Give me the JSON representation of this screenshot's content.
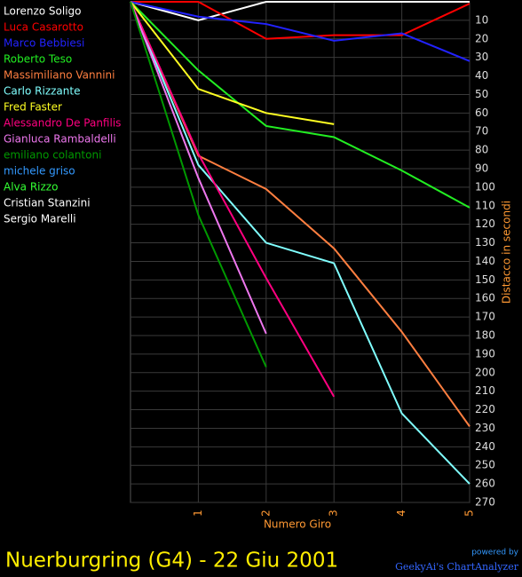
{
  "chart_data": {
    "type": "line",
    "title": "Nuerburgring (G4) - 22 Giu 2001",
    "xlabel": "Numero Giro",
    "ylabel": "Distacco in secondi",
    "credit_top": "powered by",
    "credit": "GeekyAi's ChartAnalyzer",
    "x": [
      0,
      1,
      2,
      3,
      4,
      5
    ],
    "xlim": [
      0,
      5
    ],
    "xticks": [
      1,
      2,
      3,
      4,
      5
    ],
    "ylim": [
      0,
      270
    ],
    "y_inverted": true,
    "yticks": [
      10,
      20,
      30,
      40,
      50,
      60,
      70,
      80,
      90,
      100,
      110,
      120,
      130,
      140,
      150,
      160,
      170,
      180,
      190,
      200,
      210,
      220,
      230,
      240,
      250,
      260,
      270
    ],
    "grid": true,
    "legend": "top-left",
    "series": [
      {
        "name": "Lorenzo Soligo",
        "color": "#ffffff",
        "values": [
          0,
          10,
          0,
          0,
          0,
          0
        ]
      },
      {
        "name": "Luca Casarotto",
        "color": "#ff0000",
        "values": [
          0,
          0,
          20,
          18,
          18,
          1
        ]
      },
      {
        "name": "Marco Bebbiesi",
        "color": "#2222ff",
        "values": [
          0,
          8,
          12,
          21,
          17,
          32
        ]
      },
      {
        "name": "Roberto Teso",
        "color": "#22ee22",
        "values": [
          0,
          37,
          67,
          73,
          91,
          111
        ]
      },
      {
        "name": "Massimiliano Vannini",
        "color": "#ff7f40",
        "values": [
          0,
          83,
          101,
          133,
          178,
          229
        ]
      },
      {
        "name": "Carlo Rizzante",
        "color": "#80ffff",
        "values": [
          0,
          88,
          130,
          141,
          222,
          260
        ]
      },
      {
        "name": "Fred Faster",
        "color": "#ffff22",
        "values": [
          0,
          47,
          60,
          66,
          null,
          null
        ]
      },
      {
        "name": "Alessandro De Panfilis",
        "color": "#ff0080",
        "values": [
          0,
          82,
          149,
          213,
          null,
          null
        ]
      },
      {
        "name": "Gianluca Rambaldelli",
        "color": "#ee77ee",
        "values": [
          0,
          95,
          179,
          null,
          null,
          null
        ]
      },
      {
        "name": "emiliano colantoni",
        "color": "#009900",
        "values": [
          0,
          115,
          197,
          null,
          null,
          null
        ]
      },
      {
        "name": "michele griso",
        "color": "#3399ff",
        "values": [
          0,
          null,
          null,
          null,
          null,
          null
        ]
      },
      {
        "name": "Alva Rizzo",
        "color": "#33ff33",
        "values": [
          0,
          null,
          null,
          null,
          null,
          null
        ]
      },
      {
        "name": "Cristian Stanzini",
        "color": "#ffffff",
        "values": [
          0,
          null,
          null,
          null,
          null,
          null
        ]
      },
      {
        "name": "Sergio Marelli",
        "color": "#ffffff",
        "values": [
          0,
          null,
          null,
          null,
          null,
          null
        ]
      }
    ]
  }
}
